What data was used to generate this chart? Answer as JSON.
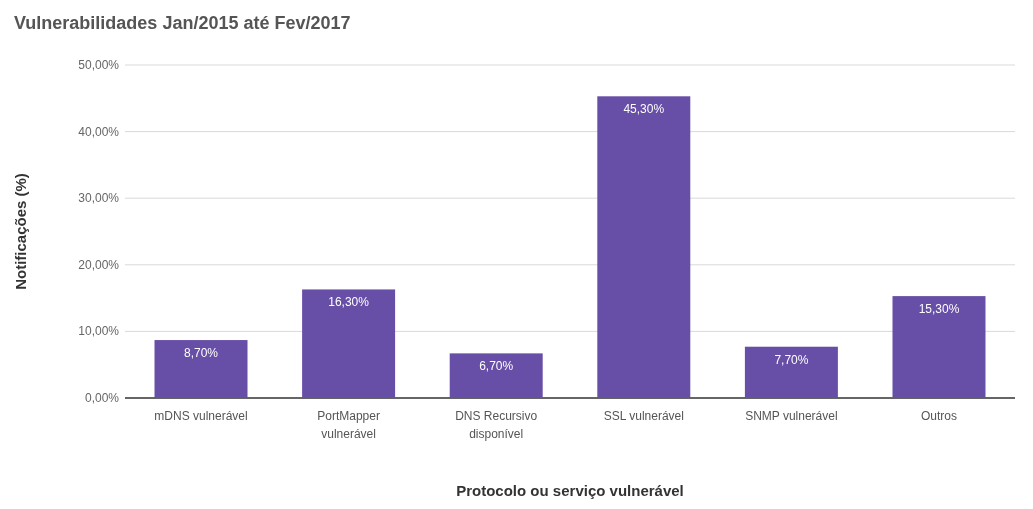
{
  "chart_data": {
    "type": "bar",
    "title": "Vulnerabilidades Jan/2015 até Fev/2017",
    "xlabel": "Protocolo ou serviço vulnerável",
    "ylabel": "Notificações (%)",
    "categories": [
      "mDNS vulnerável",
      "PortMapper vulnerável",
      "DNS Recursivo disponível",
      "SSL vulnerável",
      "SNMP vulnerável",
      "Outros"
    ],
    "values": [
      8.7,
      16.3,
      6.7,
      45.3,
      7.7,
      15.3
    ],
    "value_labels": [
      "8,70%",
      "16,30%",
      "6,70%",
      "45,30%",
      "7,70%",
      "15,30%"
    ],
    "color": "#674ea7",
    "ylim": [
      0,
      50
    ],
    "yticks": [
      {
        "value": 0,
        "label": "0,00%"
      },
      {
        "value": 10,
        "label": "10,00%"
      },
      {
        "value": 20,
        "label": "20,00%"
      },
      {
        "value": 30,
        "label": "30,00%"
      },
      {
        "value": 40,
        "label": "40,00%"
      },
      {
        "value": 50,
        "label": "50,00%"
      }
    ],
    "grid": "y"
  }
}
